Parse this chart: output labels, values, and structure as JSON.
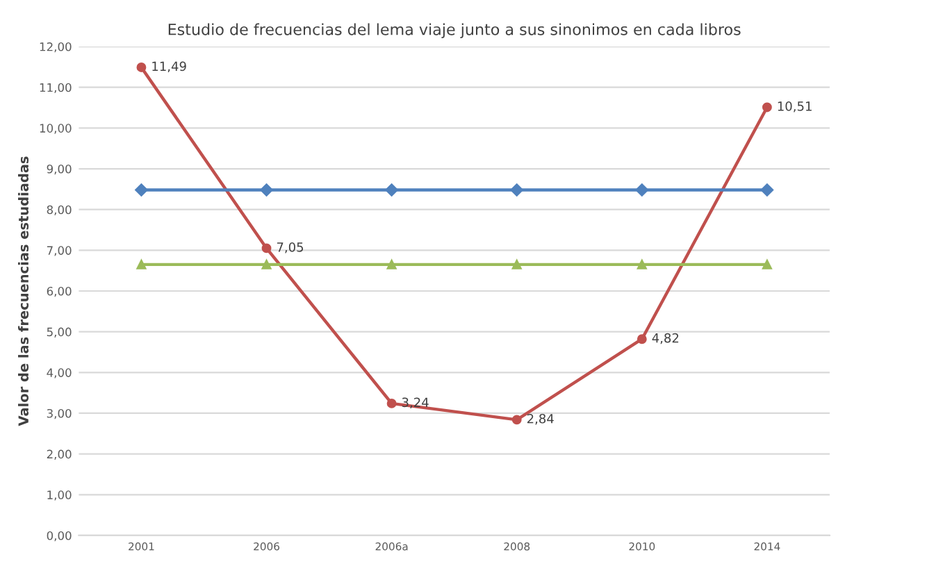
{
  "chart_data": {
    "type": "line",
    "title": "Estudio de frecuencias del lema viaje junto a sus sinonimos en cada libros",
    "ylabel": "Valor de las frecuencias estudiadas",
    "categories": [
      "2001",
      "2006",
      "2006a",
      "2008",
      "2010",
      "2014"
    ],
    "series": [
      {
        "color": "#c0504d",
        "values": [
          11.49,
          7.05,
          3.24,
          2.84,
          4.82,
          10.51
        ],
        "value_labels": [
          "11,49",
          "7,05",
          "3,24",
          "2,84",
          "4,82",
          "10,51"
        ],
        "marker": "circle"
      },
      {
        "color": "#4f81bd",
        "values": [
          8.48,
          8.48,
          8.48,
          8.48,
          8.48,
          8.48
        ],
        "marker": "diamond"
      },
      {
        "color": "#9bbb59",
        "values": [
          6.65,
          6.65,
          6.65,
          6.65,
          6.65,
          6.65
        ],
        "marker": "triangle"
      }
    ],
    "ylim": [
      0,
      12
    ],
    "yticks": [
      {
        "value": 0,
        "label": "0,00"
      },
      {
        "value": 1,
        "label": "1,00"
      },
      {
        "value": 2,
        "label": "2,00"
      },
      {
        "value": 3,
        "label": "3,00"
      },
      {
        "value": 4,
        "label": "4,00"
      },
      {
        "value": 5,
        "label": "5,00"
      },
      {
        "value": 6,
        "label": "6,00"
      },
      {
        "value": 7,
        "label": "7,00"
      },
      {
        "value": 8,
        "label": "8,00"
      },
      {
        "value": 9,
        "label": "9,00"
      },
      {
        "value": 10,
        "label": "10,00"
      },
      {
        "value": 11,
        "label": "11,00"
      },
      {
        "value": 12,
        "label": "12,00"
      }
    ],
    "grid": "y"
  }
}
